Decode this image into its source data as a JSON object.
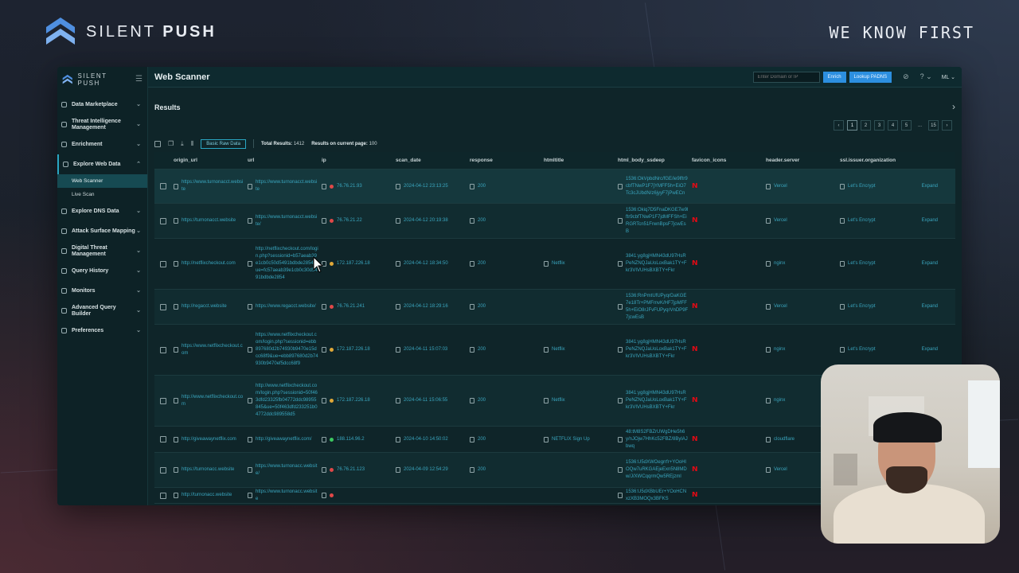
{
  "brand": {
    "name_light": "SILENT",
    "name_bold": "PUSH",
    "tagline": "WE KNOW FIRST"
  },
  "app": {
    "logo_text": "SILENT PUSH",
    "page_title": "Web Scanner",
    "search_placeholder": "Enter Domain or IP",
    "enrich_label": "Enrich",
    "lookup_label": "Lookup PADNS",
    "user_initials": "ML"
  },
  "sidebar": {
    "items": [
      {
        "label": "Data Marketplace"
      },
      {
        "label": "Threat Intelligence Management"
      },
      {
        "label": "Enrichment"
      },
      {
        "label": "Explore Web Data"
      },
      {
        "label": "Explore DNS Data"
      },
      {
        "label": "Attack Surface Mapping"
      },
      {
        "label": "Digital Threat Management"
      },
      {
        "label": "Query History"
      },
      {
        "label": "Monitors"
      },
      {
        "label": "Advanced Query Builder"
      },
      {
        "label": "Preferences"
      }
    ],
    "sub_items": [
      {
        "label": "Web Scanner"
      },
      {
        "label": "Live Scan"
      }
    ]
  },
  "results": {
    "title": "Results",
    "pages": [
      "1",
      "2",
      "3",
      "4",
      "5",
      "...",
      "15"
    ],
    "raw_data_label": "Basic Raw Data",
    "total_label": "Total Results:",
    "total_value": "1412",
    "page_label": "Results on current page:",
    "page_value": "100"
  },
  "table": {
    "columns": [
      "origin_url",
      "url",
      "ip",
      "scan_date",
      "response",
      "htmltitle",
      "html_body_ssdeep",
      "favicon_icons",
      "header.server",
      "ssl.issuer.organization"
    ],
    "expand_label": "Expand",
    "rows": [
      {
        "origin": "https://www.turnonacct.website",
        "url": "https://www.turnonacct.website",
        "ip": "76.76.21.93",
        "dot": "#e04848",
        "date": "2024-04-12 23:13:25",
        "resp": "200",
        "title": "",
        "ssdeep": "1536:OkVpbdNrc/fGE/ie9lftr9cbfTNwP1F7jYMFF5h+EiO7Tc3cJUbdN/z6jyyF7jPwECn",
        "server": "Vercel",
        "ssl": "Let's Encrypt"
      },
      {
        "origin": "https://turnonacct.website",
        "url": "https://www.turnonacct.website/",
        "ip": "76.76.21.22",
        "dot": "#e04848",
        "date": "2024-04-12 20:19:38",
        "resp": "200",
        "title": "",
        "ssdeep": "1536:Okiq7D5FnaDKGE7ie9lftr9cbfTNwP1F7jdMFFSh+EiRGRTcn51FrwnBpsF7jcwEsB",
        "server": "Vercel",
        "ssl": "Let's Encrypt"
      },
      {
        "origin": "http://netflixcheckout.com",
        "url": "http://netflixcheckout.com/login.php?sessionid=b57aeab39e1cb0c50d5491bdbde28548ue=fc57aeab39e1cb0c30d5491bdbde2854",
        "ip": "172.187.226.18",
        "dot": "#e0a838",
        "date": "2024-04-12 18:34:50",
        "resp": "200",
        "title": "Netflix",
        "ssdeep": "3841:yg8gjHMN43dU97HsRPeNZNQJaUoLoxBak1TY+Fkr3VIVUHsBXBTY+Fkr",
        "server": "nginx",
        "ssl": "Let's Encrypt"
      },
      {
        "origin": "http://regacct.website",
        "url": "https://www.regacct.website/",
        "ip": "76.76.21.241",
        "dot": "#e04848",
        "date": "2024-04-12 18:29:16",
        "resp": "200",
        "title": "",
        "ssdeep": "1536:RnPmtUfUPyqrDaKGE7e18Tr+PMFmvK/HF7jpMFF5h+EiO8rJFvFUPyqrVnDP9F7jcwEsB",
        "server": "Vercel",
        "ssl": "Let's Encrypt"
      },
      {
        "origin": "https://www.netflixcheckout.com",
        "url": "https://www.netflixcheckout.com/login.php?sessionid=ebb897680d2b74930b9470e15dcc68f9&ue=ebb897680d2b74930b9470ef5dcc68f9",
        "ip": "172.187.226.18",
        "dot": "#e0a838",
        "date": "2024-04-11 15:07:03",
        "resp": "200",
        "title": "Netflix",
        "ssdeep": "3841:yg8gjHMN43dU97HsRPeNZNQJaUoLoxBak1TY+Fkr3VIVUHsBXBTY+Fkr",
        "server": "nginx",
        "ssl": "Let's Encrypt"
      },
      {
        "origin": "http://www.netflixcheckout.com",
        "url": "http://www.netflixcheckout.com/login.php?sessionid=50f463dfd23325fb04772ddc98955845&ue=50f463dfd233251b04772ddc989558d5",
        "ip": "172.187.226.18",
        "dot": "#e0a838",
        "date": "2024-04-11 15:06:55",
        "resp": "200",
        "title": "Netflix",
        "ssdeep": "3841:yg8gjHMN43dU97HsRPeNZNQJaUoLoxBak1TY+Fkr3VIVUHsBXBTY+Fkr",
        "server": "nginx",
        "ssl": ""
      },
      {
        "origin": "http://giveawaynetflix.com",
        "url": "http://giveawaynetflix.com/",
        "ip": "188.114.96.2",
        "dot": "#3cc860",
        "date": "2024-04-10 14:50:02",
        "resp": "200",
        "title": "NETFLIX Sign Up",
        "ssdeep": "48:tM8S2FBZrUWgDHe5h6y/nJOjw7HhKc52FBZ/8BylAJbwq",
        "server": "cloudflare",
        "ssl": ""
      },
      {
        "origin": "https://turnonacc.website",
        "url": "https://www.turnonacc.website/",
        "ip": "76.76.21.123",
        "dot": "#e04848",
        "date": "2024-04-09 12:54:29",
        "resp": "200",
        "title": "",
        "ssdeep": "1536:U5dXWOegrrfr+YOoHlOQw7uRKGAEjeExn5N8MDw/J/XWCqqrmQw5REjzml",
        "server": "Vercel",
        "ssl": ""
      },
      {
        "origin": "http://turnonacc.website",
        "url": "https://www.turnonacc.website",
        "ip": "",
        "dot": "#e04848",
        "date": "",
        "resp": "",
        "title": "",
        "ssdeep": "1536:U5dXBbUEr+YOoHCNxzXB3MOQx3BFKS",
        "server": "",
        "ssl": ""
      }
    ]
  },
  "icons": {
    "favicon": "netflix-favicon-icon",
    "cursor": "mouse-cursor-icon"
  }
}
